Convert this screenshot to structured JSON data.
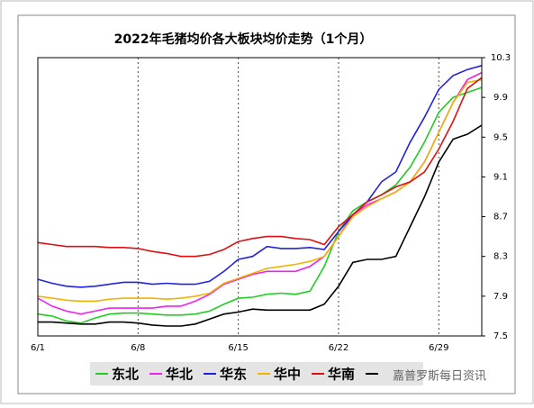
{
  "chart_data": {
    "type": "line",
    "title": "2022年毛猪均价各大板块均价走势（1个月）",
    "categories": [
      "6/1",
      null,
      null,
      null,
      null,
      null,
      null,
      "6/8",
      null,
      null,
      null,
      null,
      null,
      null,
      "6/15",
      null,
      null,
      null,
      null,
      null,
      null,
      "6/22",
      null,
      null,
      null,
      null,
      null,
      null,
      "6/29",
      null,
      null,
      null
    ],
    "ylim": [
      7.5,
      10.3
    ],
    "yticks": [
      7.5,
      7.9,
      8.3,
      8.7,
      9.1,
      9.5,
      9.9,
      10.3
    ],
    "grid": true,
    "series": [
      {
        "name": "东北",
        "color": "#22cc22",
        "values": [
          7.72,
          7.7,
          7.65,
          7.63,
          7.68,
          7.72,
          7.73,
          7.73,
          7.72,
          7.71,
          7.71,
          7.72,
          7.75,
          7.82,
          7.88,
          7.89,
          7.92,
          7.93,
          7.92,
          7.95,
          8.2,
          8.55,
          8.76,
          8.85,
          8.92,
          9.02,
          9.2,
          9.45,
          9.75,
          9.9,
          9.95,
          10.0
        ]
      },
      {
        "name": "华北",
        "color": "#ee22ee",
        "values": [
          7.88,
          7.8,
          7.75,
          7.72,
          7.75,
          7.78,
          7.78,
          7.78,
          7.78,
          7.8,
          7.8,
          7.85,
          7.92,
          8.02,
          8.07,
          8.12,
          8.15,
          8.15,
          8.15,
          8.2,
          8.3,
          8.5,
          8.72,
          8.82,
          8.88,
          8.95,
          9.05,
          9.25,
          9.55,
          9.85,
          10.08,
          10.15
        ]
      },
      {
        "name": "华东",
        "color": "#2222dd",
        "values": [
          8.07,
          8.03,
          8.0,
          7.99,
          8.0,
          8.02,
          8.04,
          8.04,
          8.02,
          8.03,
          8.02,
          8.02,
          8.05,
          8.15,
          8.27,
          8.3,
          8.4,
          8.38,
          8.38,
          8.39,
          8.37,
          8.55,
          8.72,
          8.85,
          9.05,
          9.15,
          9.45,
          9.7,
          9.98,
          10.12,
          10.18,
          10.22
        ]
      },
      {
        "name": "华中",
        "color": "#f0b400",
        "values": [
          7.9,
          7.88,
          7.86,
          7.85,
          7.85,
          7.87,
          7.88,
          7.88,
          7.88,
          7.87,
          7.88,
          7.9,
          7.93,
          8.03,
          8.08,
          8.13,
          8.18,
          8.2,
          8.22,
          8.25,
          8.3,
          8.5,
          8.7,
          8.8,
          8.88,
          8.95,
          9.05,
          9.25,
          9.55,
          9.85,
          10.05,
          10.08
        ]
      },
      {
        "name": "华南",
        "color": "#dd1111",
        "values": [
          8.44,
          8.42,
          8.4,
          8.4,
          8.4,
          8.39,
          8.39,
          8.38,
          8.35,
          8.33,
          8.3,
          8.3,
          8.32,
          8.37,
          8.45,
          8.48,
          8.5,
          8.5,
          8.48,
          8.47,
          8.42,
          8.6,
          8.72,
          8.85,
          8.92,
          9.0,
          9.05,
          9.15,
          9.38,
          9.66,
          9.99,
          10.1
        ]
      },
      {
        "color": "#000000",
        "values": [
          7.64,
          7.64,
          7.63,
          7.62,
          7.62,
          7.64,
          7.64,
          7.63,
          7.61,
          7.6,
          7.6,
          7.62,
          7.67,
          7.72,
          7.74,
          7.77,
          7.76,
          7.76,
          7.76,
          7.76,
          7.82,
          8.0,
          8.24,
          8.27,
          8.27,
          8.3,
          8.6,
          8.9,
          9.25,
          9.48,
          9.53,
          9.62
        ]
      }
    ],
    "watermark": "嘉普罗斯每日资讯"
  }
}
